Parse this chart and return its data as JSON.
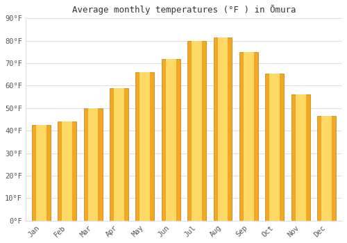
{
  "title": "Average monthly temperatures (°F ) in Ōmura",
  "months": [
    "Jan",
    "Feb",
    "Mar",
    "Apr",
    "May",
    "Jun",
    "Jul",
    "Aug",
    "Sep",
    "Oct",
    "Nov",
    "Dec"
  ],
  "values": [
    42.5,
    44,
    50,
    59,
    66,
    72,
    80,
    81.5,
    75,
    65.5,
    56,
    46.5
  ],
  "bar_color_outer": "#F5A623",
  "bar_color_inner": "#FFD966",
  "bar_edge_color": "#B8860B",
  "background_color": "#FFFFFF",
  "grid_color": "#DDDDDD",
  "ylim": [
    0,
    90
  ],
  "yticks": [
    0,
    10,
    20,
    30,
    40,
    50,
    60,
    70,
    80,
    90
  ],
  "ytick_labels": [
    "0°F",
    "10°F",
    "20°F",
    "30°F",
    "40°F",
    "50°F",
    "60°F",
    "70°F",
    "80°F",
    "90°F"
  ],
  "title_fontsize": 9,
  "tick_fontsize": 7.5,
  "font_color": "#555555"
}
